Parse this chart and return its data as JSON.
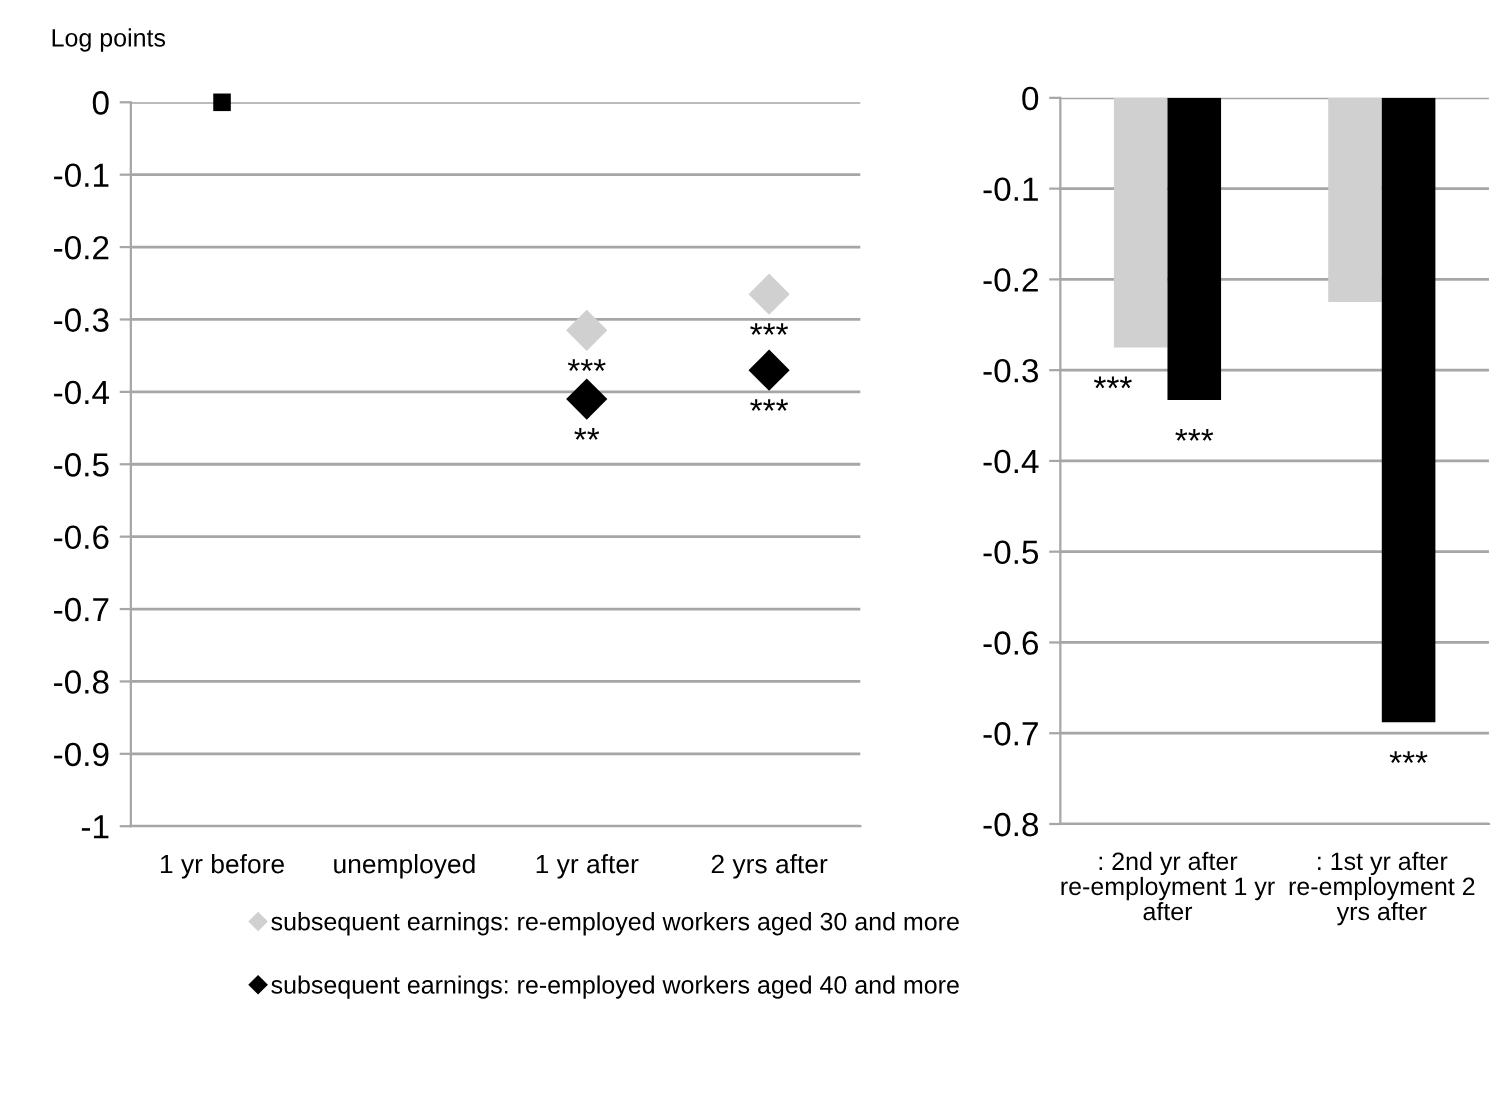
{
  "chart_data": [
    {
      "type": "scatter",
      "ylabel": "Log points",
      "categories": [
        "1 yr before",
        "unemployed",
        "1 yr after",
        "2 yrs after"
      ],
      "series": [
        {
          "name": "subsequent earnings: re-employed workers aged 30 and more",
          "color": "#d0d0d0",
          "marker": "diamond",
          "values": [
            null,
            null,
            -0.315,
            -0.265
          ]
        },
        {
          "name": "subsequent earnings: re-employed workers aged 40 and more",
          "color": "#000000",
          "marker": "diamond",
          "values": [
            null,
            null,
            -0.41,
            -0.37
          ]
        },
        {
          "color": "#000000",
          "marker": "square",
          "values": [
            0,
            null,
            null,
            null
          ]
        }
      ],
      "ylim": [
        -1,
        0
      ],
      "yticks": [
        -1,
        -0.9,
        -0.8,
        -0.7,
        -0.6,
        -0.5,
        -0.4,
        -0.3,
        -0.2,
        -0.1,
        0
      ],
      "grid": "y",
      "legend": "bottom",
      "annotations": [
        {
          "text": "***",
          "x": "1 yr after",
          "y": -0.315
        },
        {
          "text": "**",
          "x": "1 yr after",
          "y": -0.41
        },
        {
          "text": "***",
          "x": "2 yrs after",
          "y": -0.265
        },
        {
          "text": "***",
          "x": "2 yrs after",
          "y": -0.37
        }
      ]
    },
    {
      "type": "bar",
      "categories": [
        ": 2nd yr after re-employment 1 yr after",
        ": 1st yr after re-employment 2 yrs after"
      ],
      "series": [
        {
          "color": "#d0d0d0",
          "values": [
            -0.275,
            -0.225
          ]
        },
        {
          "color": "#000000",
          "values": [
            -0.333,
            -0.688
          ]
        }
      ],
      "ylim": [
        -0.8,
        0
      ],
      "yticks": [
        -0.8,
        -0.7,
        -0.6,
        -0.5,
        -0.4,
        -0.3,
        -0.2,
        -0.1,
        0
      ],
      "grid": "y",
      "annotations": [
        {
          "text": "***",
          "x": ": 2nd yr after re-employment 1 yr after",
          "y": -0.275
        },
        {
          "text": "***",
          "x": ": 2nd yr after re-employment 1 yr after",
          "y": -0.333
        },
        {
          "text": "***",
          "x": ": 1st yr after re-employment 2 yrs after",
          "y": -0.688
        }
      ]
    }
  ]
}
